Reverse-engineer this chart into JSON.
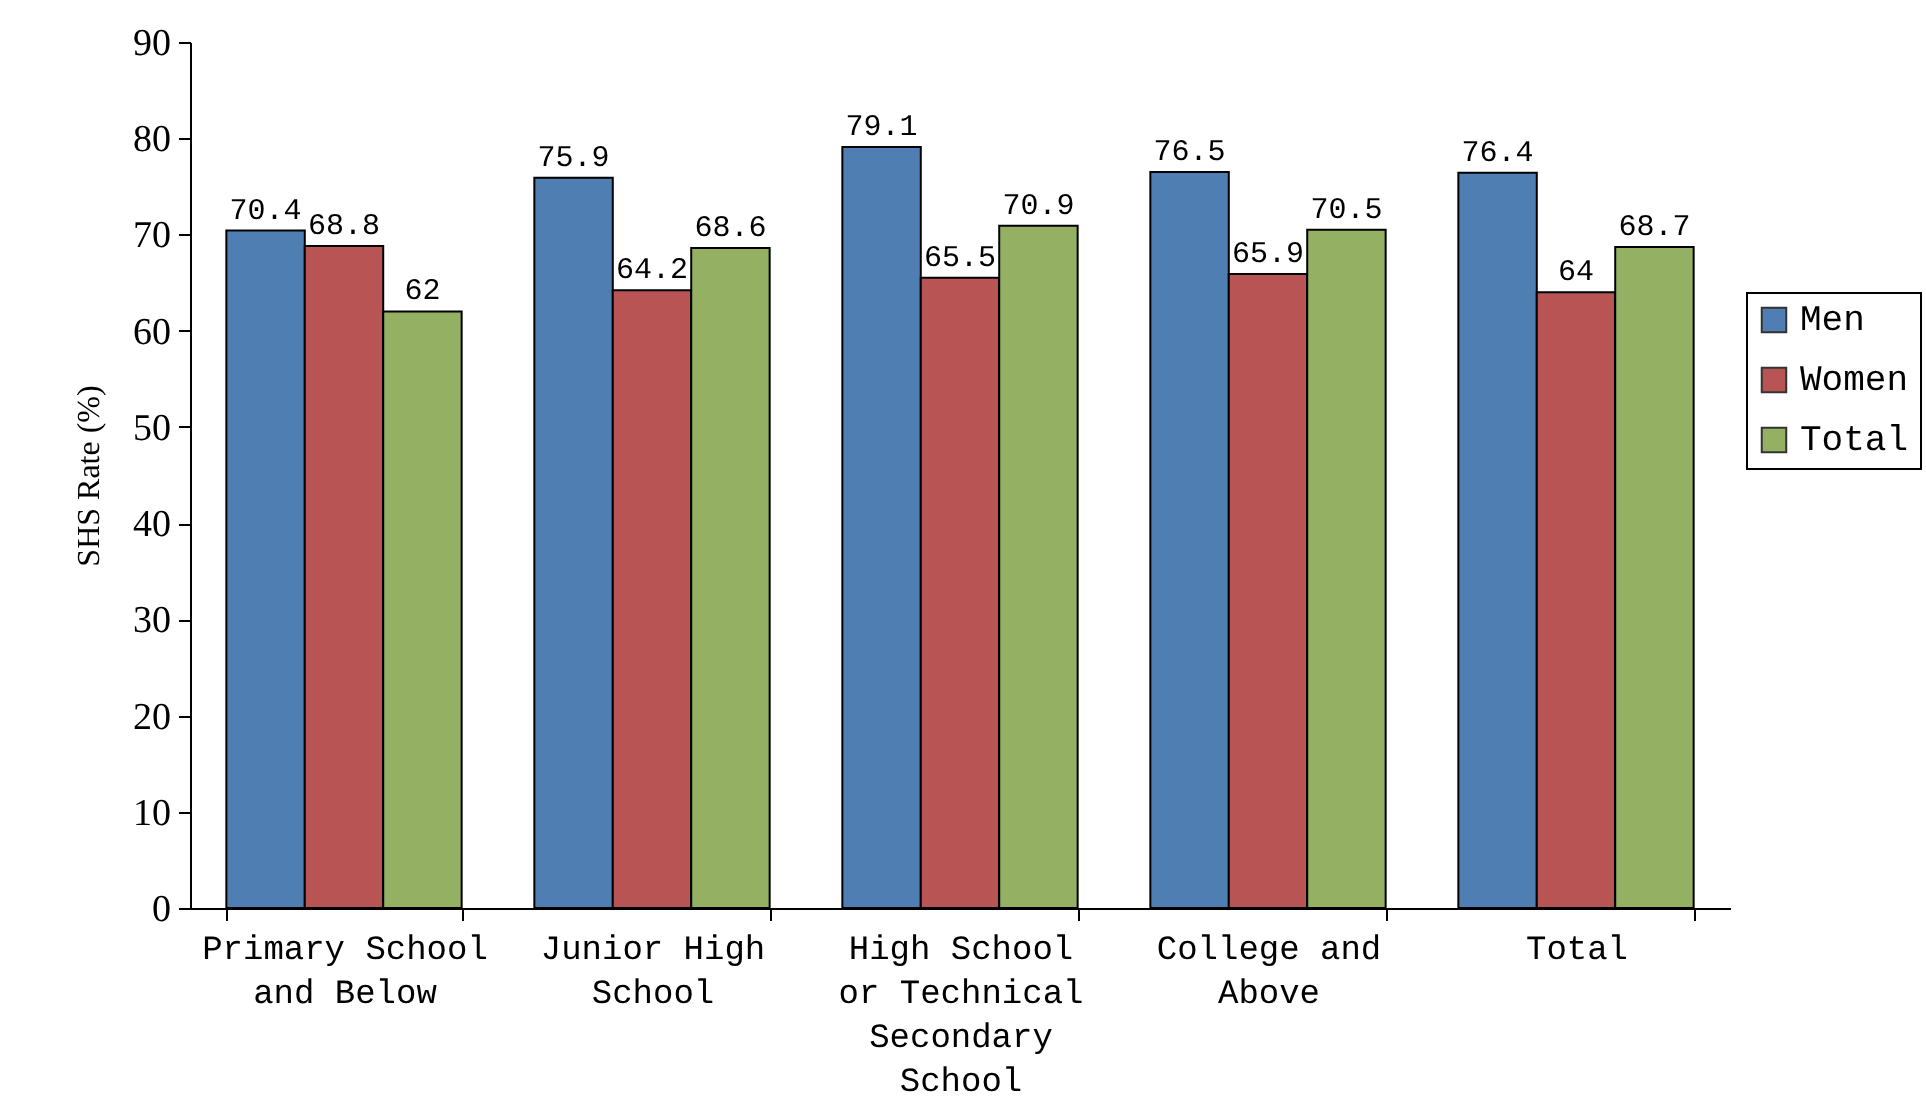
{
  "chart_data": {
    "type": "bar",
    "ylabel": "SHS Rate (%)",
    "categories": [
      "Primary School\nand Below",
      "Junior High\nSchool",
      "High School\nor Technical\nSecondary\nSchool",
      "College and\nAbove",
      "Total"
    ],
    "series": [
      {
        "name": "Men",
        "color": "#4f7eb3",
        "values": [
          70.4,
          75.9,
          79.1,
          76.5,
          76.4
        ]
      },
      {
        "name": "Women",
        "color": "#b85454",
        "values": [
          68.8,
          64.2,
          65.5,
          65.9,
          64
        ]
      },
      {
        "name": "Total",
        "color": "#93b063",
        "values": [
          62,
          68.6,
          70.9,
          70.5,
          68.7
        ]
      }
    ],
    "ylim": [
      0,
      90
    ],
    "yticks": [
      0,
      10,
      20,
      30,
      40,
      50,
      60,
      70,
      80,
      90
    ],
    "data_labels": true,
    "legend": "right"
  }
}
